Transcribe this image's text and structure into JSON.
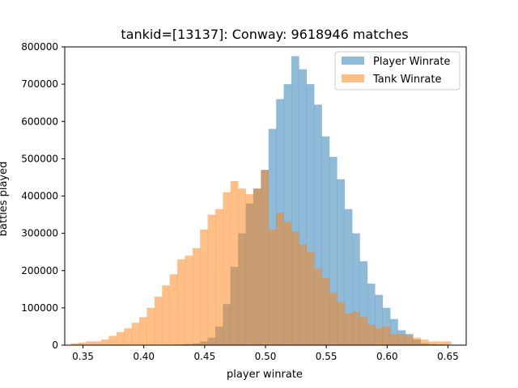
{
  "chart_data": {
    "type": "bar",
    "subtype": "overlaid-histogram",
    "title": "tankid=[13137]: Conway: 9618946 matches",
    "xlabel": "player winrate",
    "ylabel": "battles played",
    "xlim": [
      0.335,
      0.665
    ],
    "ylim": [
      0,
      800000
    ],
    "xticks": [
      0.35,
      0.4,
      0.45,
      0.5,
      0.55,
      0.6,
      0.65
    ],
    "xtick_labels": [
      "0.35",
      "0.40",
      "0.45",
      "0.50",
      "0.55",
      "0.60",
      "0.65"
    ],
    "yticks": [
      0,
      100000,
      200000,
      300000,
      400000,
      500000,
      600000,
      700000,
      800000
    ],
    "ytick_labels": [
      "0",
      "100000",
      "200000",
      "300000",
      "400000",
      "500000",
      "600000",
      "700000",
      "800000"
    ],
    "grid": false,
    "legend_position": "top-right",
    "series": [
      {
        "name": "Player Winrate",
        "color": "#1f77b4",
        "opacity": 0.5,
        "bin_start": 0.34,
        "bin_width": 0.00625,
        "values": [
          0,
          0,
          0,
          0,
          0,
          0,
          0,
          0,
          0,
          0,
          0,
          0,
          0,
          0,
          2000,
          3000,
          5000,
          10000,
          20000,
          50000,
          110000,
          210000,
          300000,
          380000,
          420000,
          470000,
          580000,
          660000,
          700000,
          775000,
          740000,
          700000,
          645000,
          560000,
          505000,
          445000,
          365000,
          300000,
          225000,
          165000,
          135000,
          100000,
          70000,
          40000,
          30000,
          15000,
          5000,
          3000,
          2000,
          1000
        ]
      },
      {
        "name": "Tank Winrate",
        "color": "#ff7f0e",
        "opacity": 0.5,
        "bin_start": 0.34,
        "bin_width": 0.00625,
        "values": [
          5000,
          7000,
          10000,
          10000,
          15000,
          25000,
          35000,
          45000,
          60000,
          75000,
          100000,
          130000,
          160000,
          190000,
          230000,
          240000,
          260000,
          310000,
          350000,
          365000,
          410000,
          440000,
          420000,
          405000,
          420000,
          470000,
          310000,
          355000,
          330000,
          305000,
          270000,
          250000,
          205000,
          180000,
          140000,
          115000,
          85000,
          90000,
          75000,
          55000,
          45000,
          50000,
          30000,
          30000,
          25000,
          20000,
          15000,
          10000,
          10000,
          10000
        ]
      }
    ]
  }
}
